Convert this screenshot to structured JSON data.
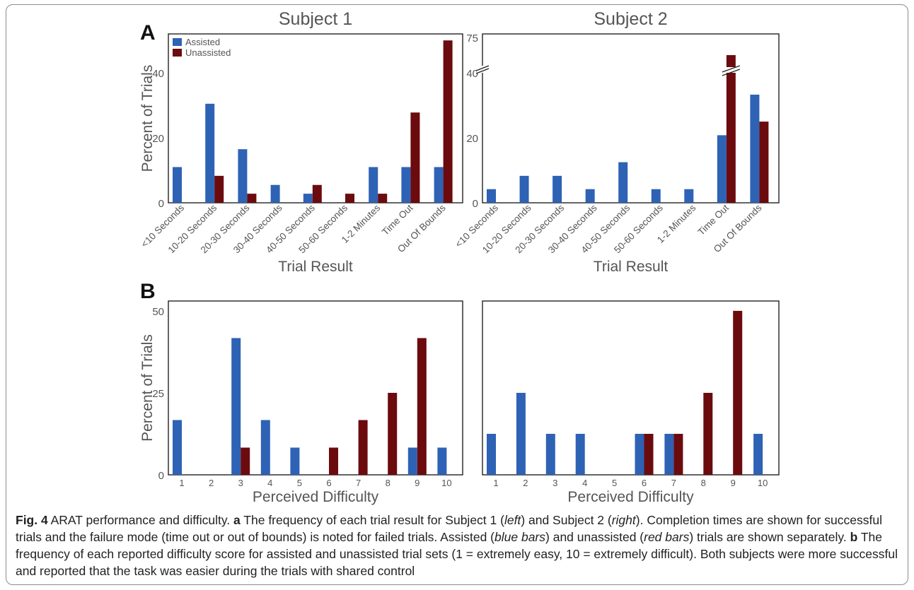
{
  "colors": {
    "assisted": "#2e62b5",
    "unassisted": "#6b0b0e",
    "axis": "#222222",
    "text": "#555555"
  },
  "panel_labels": [
    "A",
    "B"
  ],
  "chart_data": [
    {
      "type": "bar",
      "panel": "A",
      "title": "Subject 1",
      "xlabel": "Trial Result",
      "ylabel": "Percent of Trials",
      "categories": [
        "<10 Seconds",
        "10-20 Seconds",
        "20-30 Seconds",
        "30-40 Seconds",
        "40-50 Seconds",
        "50-60 Seconds",
        "1-2 Minutes",
        "Time Out",
        "Out Of Bounds"
      ],
      "yticks": [
        "0",
        "20",
        "40"
      ],
      "ylim": [
        0,
        52
      ],
      "legend": [
        "Assisted",
        "Unassisted"
      ],
      "legend_position": "top-left",
      "grid": false,
      "series": [
        {
          "name": "Assisted",
          "values": [
            11,
            30.5,
            16.5,
            5.5,
            2.8,
            0,
            11,
            11,
            11
          ]
        },
        {
          "name": "Unassisted",
          "values": [
            0,
            8.3,
            2.8,
            0,
            5.5,
            2.8,
            2.8,
            27.8,
            50
          ]
        }
      ]
    },
    {
      "type": "bar",
      "panel": "A",
      "title": "Subject 2",
      "xlabel": "Trial Result",
      "ylabel": "",
      "categories": [
        "<10 Seconds",
        "10-20 Seconds",
        "20-30 Seconds",
        "30-40 Seconds",
        "40-50 Seconds",
        "50-60 Seconds",
        "1-2 Minutes",
        "Time Out",
        "Out Of Bounds"
      ],
      "yticks": [
        "0",
        "20",
        "40",
        "75"
      ],
      "ylim": [
        0,
        52
      ],
      "axis_break": [
        45,
        75
      ],
      "grid": false,
      "series": [
        {
          "name": "Assisted",
          "values": [
            4.2,
            8.3,
            8.3,
            4.2,
            12.5,
            4.2,
            4.2,
            20.8,
            33.3
          ]
        },
        {
          "name": "Unassisted",
          "values": [
            0,
            0,
            0,
            0,
            0,
            0,
            0,
            75,
            25
          ]
        }
      ]
    },
    {
      "type": "bar",
      "panel": "B",
      "title": "",
      "xlabel": "Perceived Difficulty",
      "ylabel": "Percent of Trials",
      "categories": [
        "1",
        "2",
        "3",
        "4",
        "5",
        "6",
        "7",
        "8",
        "9",
        "10"
      ],
      "yticks": [
        "0",
        "25",
        "50"
      ],
      "ylim": [
        0,
        53
      ],
      "grid": false,
      "series": [
        {
          "name": "Assisted",
          "values": [
            16.7,
            0,
            41.7,
            16.7,
            8.3,
            0,
            0,
            0,
            8.3,
            8.3
          ]
        },
        {
          "name": "Unassisted",
          "values": [
            0,
            0,
            8.3,
            0,
            0,
            8.3,
            16.7,
            25,
            41.7,
            0
          ]
        }
      ]
    },
    {
      "type": "bar",
      "panel": "B",
      "title": "",
      "xlabel": "Perceived Difficulty",
      "ylabel": "",
      "categories": [
        "1",
        "2",
        "3",
        "4",
        "5",
        "6",
        "7",
        "8",
        "9",
        "10"
      ],
      "yticks": [],
      "ylim": [
        0,
        53
      ],
      "grid": false,
      "series": [
        {
          "name": "Assisted",
          "values": [
            12.5,
            25,
            12.5,
            12.5,
            0,
            12.5,
            12.5,
            0,
            0,
            12.5
          ]
        },
        {
          "name": "Unassisted",
          "values": [
            0,
            0,
            0,
            0,
            0,
            12.5,
            12.5,
            25,
            50,
            0
          ]
        }
      ]
    }
  ],
  "caption": {
    "fig_label": "Fig. 4",
    "title": " ARAT performance and difficulty. ",
    "a_label": "a",
    "a_text_1": " The frequency of each trial result for Subject 1 (",
    "left": "left",
    "a_text_2": ") and Subject 2 (",
    "right": "right",
    "a_text_3": "). Completion times are shown for successful trials and the failure mode (time out or out of bounds) is noted for failed trials. Assisted (",
    "blue_bars": "blue bars",
    "a_text_4": ") and unassisted (",
    "red_bars": "red bars",
    "a_text_5": ") trials are shown separately. ",
    "b_label": "b",
    "b_text": " The frequency of each reported difficulty score for assisted and unassisted trial sets (1 = extremely easy, 10 = extremely difficult). Both subjects were more successful and reported that the task was easier during the trials with shared control"
  }
}
